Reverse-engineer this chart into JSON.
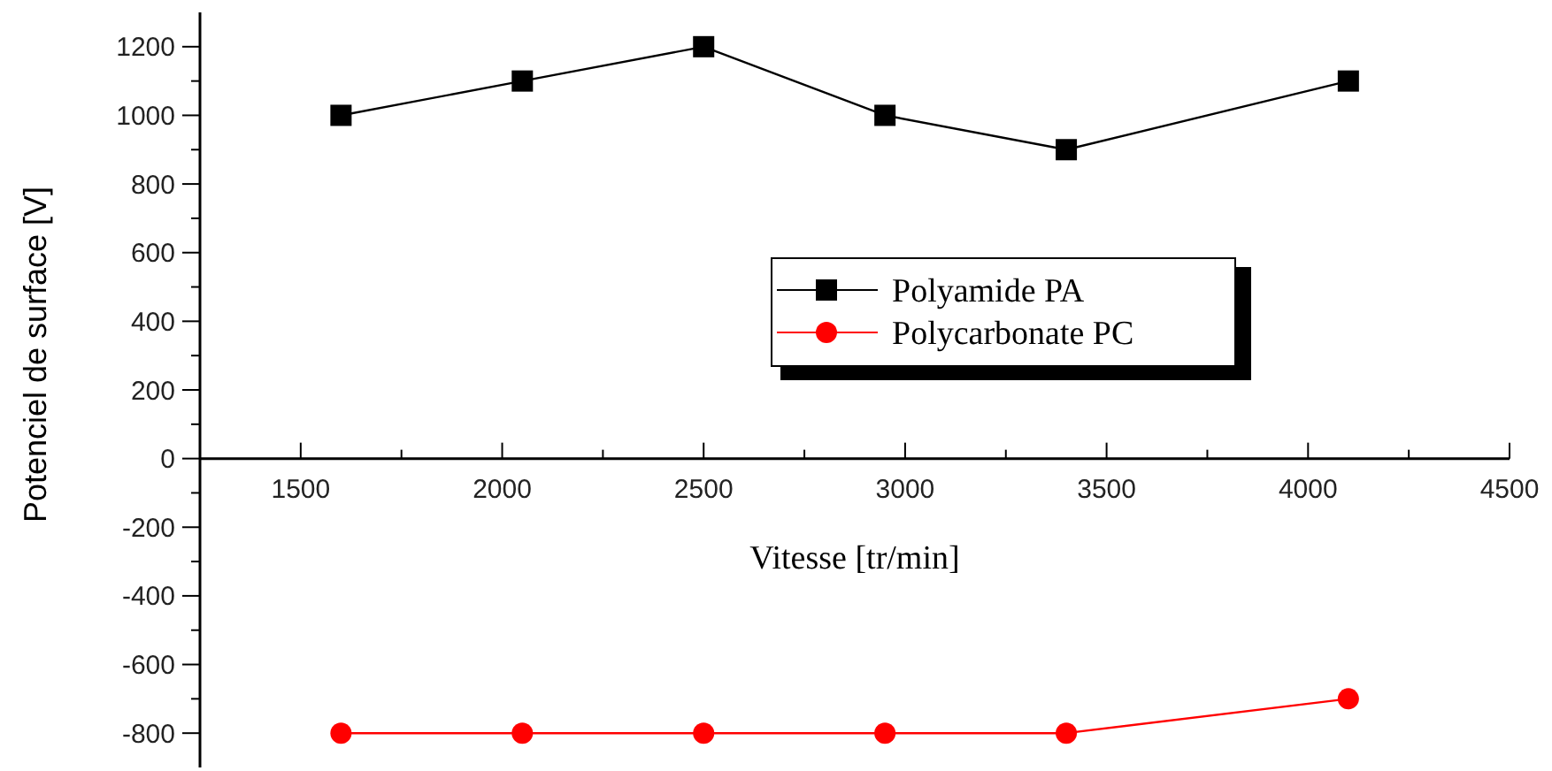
{
  "chart_data": {
    "type": "line",
    "xlabel": "Vitesse [tr/min]",
    "ylabel": "Potenciel de surface [V]",
    "x": [
      1600,
      2050,
      2500,
      2950,
      3400,
      4100
    ],
    "series": [
      {
        "name": "Polyamide PA",
        "color": "#000000",
        "marker": "square",
        "values": [
          1000,
          1100,
          1200,
          1000,
          900,
          1100
        ]
      },
      {
        "name": "Polycarbonate PC",
        "color": "#ff0000",
        "marker": "circle",
        "values": [
          -800,
          -800,
          -800,
          -800,
          -800,
          -700
        ]
      }
    ],
    "xlim": [
      1250,
      4500
    ],
    "xticks": [
      1500,
      {
        "value": 1750,
        "label": null
      },
      2000,
      {
        "value": 2250,
        "label": null
      },
      2500,
      {
        "value": 2750,
        "label": null
      },
      3000,
      {
        "value": 3250,
        "label": null
      },
      3500,
      {
        "value": 3750,
        "label": null
      },
      4000,
      {
        "value": 4250,
        "label": null
      },
      4500
    ],
    "ylim": [
      -900,
      1300
    ],
    "yticks": [
      -800,
      {
        "value": -700,
        "label": null
      },
      -600,
      {
        "value": -500,
        "label": null
      },
      -400,
      {
        "value": -300,
        "label": null
      },
      -200,
      {
        "value": -100,
        "label": null
      },
      0,
      {
        "value": 100,
        "label": null
      },
      200,
      {
        "value": 300,
        "label": null
      },
      400,
      {
        "value": 500,
        "label": null
      },
      600,
      {
        "value": 700,
        "label": null
      },
      800,
      {
        "value": 900,
        "label": null
      },
      1000,
      {
        "value": 1100,
        "label": null
      },
      1200
    ],
    "legend": "right",
    "grid": false
  }
}
